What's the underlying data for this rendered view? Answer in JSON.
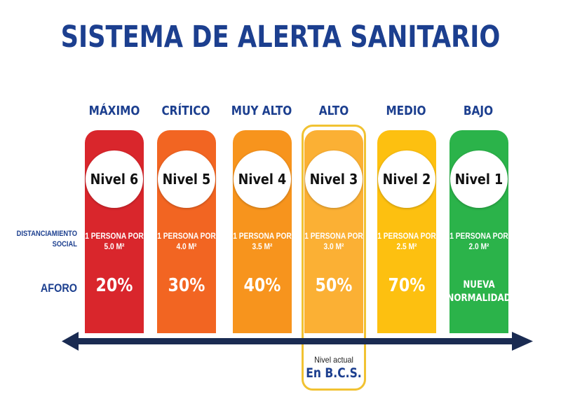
{
  "title": "SISTEMA DE ALERTA SANITARIO",
  "row_labels": {
    "distanciamiento_line1": "DISTANCIAMIENTO",
    "distanciamiento_line2": "SOCIAL",
    "aforo": "AFORO"
  },
  "levels": [
    {
      "label": "MÁXIMO",
      "nivel": "Nivel 6",
      "dist_line1": "1 PERSONA POR",
      "dist_line2": "5.0 M²",
      "aforo": "20%",
      "color": "#d9262c"
    },
    {
      "label": "CRÍTICO",
      "nivel": "Nivel 5",
      "dist_line1": "1 PERSONA POR",
      "dist_line2": "4.0 M²",
      "aforo": "30%",
      "color": "#f26522"
    },
    {
      "label": "MUY ALTO",
      "nivel": "Nivel 4",
      "dist_line1": "1 PERSONA POR",
      "dist_line2": "3.5 M²",
      "aforo": "40%",
      "color": "#f7941d"
    },
    {
      "label": "ALTO",
      "nivel": "Nivel 3",
      "dist_line1": "1 PERSONA POR",
      "dist_line2": "3.0 M²",
      "aforo": "50%",
      "color": "#fbb034"
    },
    {
      "label": "MEDIO",
      "nivel": "Nivel 2",
      "dist_line1": "1 PERSONA POR",
      "dist_line2": "2.5 M²",
      "aforo": "70%",
      "color": "#fdc010"
    },
    {
      "label": "BAJO",
      "nivel": "Nivel 1",
      "dist_line1": "1 PERSONA POR",
      "dist_line2": "2.0 M²",
      "aforo_line1": "NUEVA",
      "aforo_line2": "NORMALIDAD",
      "color": "#2bb34a"
    }
  ],
  "current": {
    "caption": "Nivel actual",
    "place": "En B.C.S.",
    "highlight_color": "#f1c232"
  },
  "colors": {
    "title": "#1c3f8f",
    "arrow": "#1a2b52"
  }
}
